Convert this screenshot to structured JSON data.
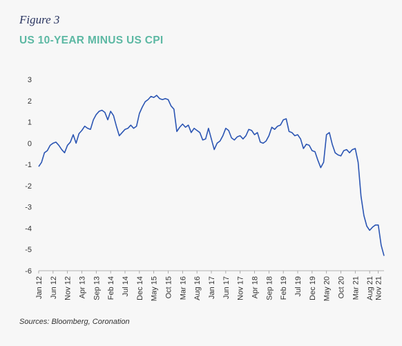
{
  "figure_label": "Figure 3",
  "title": "US 10-YEAR MINUS US CPI",
  "source": "Sources: Bloomberg, Coronation",
  "colors": {
    "line": "#2b55b3",
    "title": "#5cb8a3",
    "figure_label": "#2a3560"
  },
  "chart_data": {
    "type": "line",
    "title": "US 10-YEAR MINUS US CPI",
    "xlabel": "",
    "ylabel": "",
    "ylim": [
      -6,
      3
    ],
    "yticks": [
      3,
      2,
      1,
      0,
      -1,
      -2,
      -3,
      -4,
      -5,
      -6
    ],
    "xlim": [
      "2012-01",
      "2022-01"
    ],
    "x_tick_labels": [
      "Jan 12",
      "Jun 12",
      "Nov 12",
      "Apr 13",
      "Sep 13",
      "Feb 14",
      "Jul 14",
      "Dec 14",
      "May 15",
      "Oct 15",
      "Mar 16",
      "Aug 16",
      "Jan 17",
      "Jun 17",
      "Nov 17",
      "Apr 18",
      "Sep 18",
      "Feb 19",
      "Jul 19",
      "Dec 19",
      "May 20",
      "Oct 20",
      "Mar 21",
      "Aug 21",
      "Nov 21"
    ],
    "x_tick_dates": [
      "2012-01",
      "2012-06",
      "2012-11",
      "2013-04",
      "2013-09",
      "2014-02",
      "2014-07",
      "2014-12",
      "2015-05",
      "2015-10",
      "2016-03",
      "2016-08",
      "2017-01",
      "2017-06",
      "2017-11",
      "2018-04",
      "2018-09",
      "2019-02",
      "2019-07",
      "2019-12",
      "2020-05",
      "2020-10",
      "2021-03",
      "2021-08",
      "2021-11"
    ],
    "grid": false,
    "legend": "none",
    "series": [
      {
        "x": [
          "2012-01",
          "2012-02",
          "2012-03",
          "2012-04",
          "2012-05",
          "2012-06",
          "2012-07",
          "2012-08",
          "2012-09",
          "2012-10",
          "2012-11",
          "2012-12",
          "2013-01",
          "2013-02",
          "2013-03",
          "2013-04",
          "2013-05",
          "2013-06",
          "2013-07",
          "2013-08",
          "2013-09",
          "2013-10",
          "2013-11",
          "2013-12",
          "2014-01",
          "2014-02",
          "2014-03",
          "2014-04",
          "2014-05",
          "2014-06",
          "2014-07",
          "2014-08",
          "2014-09",
          "2014-10",
          "2014-11",
          "2014-12",
          "2015-01",
          "2015-02",
          "2015-03",
          "2015-04",
          "2015-05",
          "2015-06",
          "2015-07",
          "2015-08",
          "2015-09",
          "2015-10",
          "2015-11",
          "2015-12",
          "2016-01",
          "2016-02",
          "2016-03",
          "2016-04",
          "2016-05",
          "2016-06",
          "2016-07",
          "2016-08",
          "2016-09",
          "2016-10",
          "2016-11",
          "2016-12",
          "2017-01",
          "2017-02",
          "2017-03",
          "2017-04",
          "2017-05",
          "2017-06",
          "2017-07",
          "2017-08",
          "2017-09",
          "2017-10",
          "2017-11",
          "2017-12",
          "2018-01",
          "2018-02",
          "2018-03",
          "2018-04",
          "2018-05",
          "2018-06",
          "2018-07",
          "2018-08",
          "2018-09",
          "2018-10",
          "2018-11",
          "2018-12",
          "2019-01",
          "2019-02",
          "2019-03",
          "2019-04",
          "2019-05",
          "2019-06",
          "2019-07",
          "2019-08",
          "2019-09",
          "2019-10",
          "2019-11",
          "2019-12",
          "2020-01",
          "2020-02",
          "2020-03",
          "2020-04",
          "2020-05",
          "2020-06",
          "2020-07",
          "2020-08",
          "2020-09",
          "2020-10",
          "2020-11",
          "2020-12",
          "2021-01",
          "2021-02",
          "2021-03",
          "2021-04",
          "2021-05",
          "2021-06",
          "2021-07",
          "2021-08",
          "2021-09",
          "2021-10",
          "2021-11",
          "2021-12",
          "2022-01"
        ],
        "values": [
          -1.1,
          -0.9,
          -0.45,
          -0.35,
          -0.1,
          0.0,
          0.05,
          -0.1,
          -0.3,
          -0.45,
          -0.1,
          0.05,
          0.4,
          0.0,
          0.45,
          0.6,
          0.8,
          0.7,
          0.65,
          1.1,
          1.35,
          1.5,
          1.55,
          1.45,
          1.1,
          1.5,
          1.3,
          0.8,
          0.35,
          0.5,
          0.65,
          0.7,
          0.85,
          0.7,
          0.8,
          1.4,
          1.7,
          1.95,
          2.05,
          2.2,
          2.15,
          2.25,
          2.1,
          2.05,
          2.1,
          2.05,
          1.75,
          1.6,
          0.55,
          0.75,
          0.9,
          0.75,
          0.85,
          0.5,
          0.7,
          0.6,
          0.5,
          0.15,
          0.2,
          0.7,
          0.2,
          -0.3,
          0.0,
          0.1,
          0.35,
          0.7,
          0.6,
          0.25,
          0.15,
          0.3,
          0.35,
          0.2,
          0.35,
          0.65,
          0.6,
          0.4,
          0.5,
          0.05,
          0.0,
          0.1,
          0.35,
          0.75,
          0.65,
          0.8,
          0.85,
          1.1,
          1.15,
          0.55,
          0.5,
          0.35,
          0.4,
          0.2,
          -0.25,
          -0.05,
          -0.1,
          -0.35,
          -0.4,
          -0.8,
          -1.15,
          -0.9,
          0.4,
          0.5,
          -0.05,
          -0.45,
          -0.55,
          -0.6,
          -0.35,
          -0.3,
          -0.45,
          -0.3,
          -0.25,
          -0.9,
          -2.5,
          -3.4,
          -3.9,
          -4.1,
          -3.95,
          -3.85,
          -3.85,
          -4.8,
          -5.3
        ]
      }
    ]
  }
}
